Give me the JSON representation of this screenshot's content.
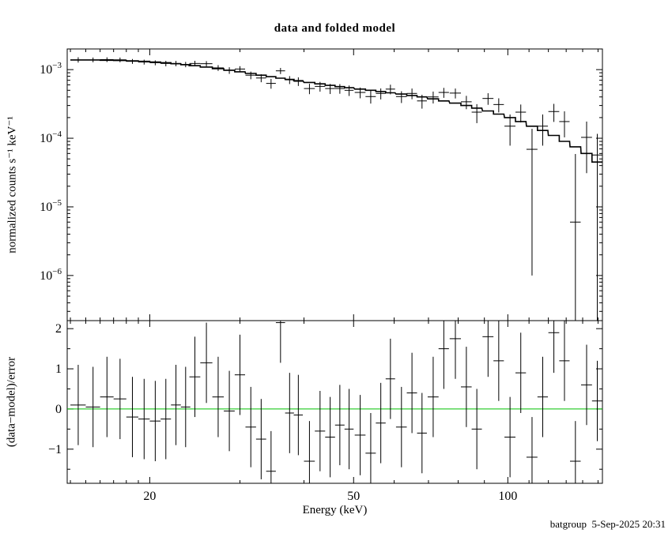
{
  "page": {
    "footer": "batgroup  5-Sep-2025 20:31"
  },
  "chart_data": {
    "type": "scatter",
    "title": "data and folded model",
    "xlabel": "Energy (keV)",
    "xscale": "log",
    "xlim": [
      13.8,
      153
    ],
    "xticks": [
      20,
      50,
      100
    ],
    "xtick_labels": [
      "20",
      "50",
      "100"
    ],
    "xminor_ticks": [
      14,
      15,
      16,
      17,
      18,
      19,
      30,
      40,
      60,
      70,
      80,
      90,
      110,
      120,
      130,
      140,
      150
    ],
    "grid": false,
    "legend": "none",
    "panels": [
      {
        "name": "spectrum",
        "ylabel": "normalized counts s⁻¹ keV⁻¹",
        "yscale": "log",
        "ylim": [
          2.2e-07,
          0.002
        ],
        "ytick_exponents": [
          -3,
          -4,
          -5,
          -6
        ]
      },
      {
        "name": "residuals",
        "ylabel": "(data−model)/error",
        "yscale": "linear",
        "ylim": [
          -1.85,
          2.2
        ],
        "yticks": [
          -1,
          0,
          1,
          2
        ],
        "ytick_labels": [
          "−1",
          "0",
          "1",
          "2"
        ],
        "yminor_ticks": [
          -1.5,
          -0.5,
          0.5,
          1.5
        ],
        "zero_line_color": "#00c000"
      }
    ],
    "colors": {
      "data": "#000000",
      "model": "#000000",
      "zero_line": "#00c000"
    },
    "series": {
      "energy": [
        14.5,
        15.5,
        16.5,
        17.5,
        18.5,
        19.5,
        20.5,
        21.5,
        22.5,
        23.5,
        24.5,
        25.8,
        27.2,
        28.6,
        30.0,
        31.5,
        33.0,
        34.5,
        36.0,
        37.5,
        39.0,
        41.0,
        43.0,
        45.0,
        47.0,
        49.0,
        51.5,
        54.0,
        56.5,
        59.0,
        62.0,
        65.0,
        68.0,
        71.5,
        75.0,
        79.0,
        83.0,
        87.0,
        91.5,
        96.0,
        101.0,
        106.0,
        111.5,
        117.0,
        123.0,
        129.0,
        135.5,
        142.5,
        149.5
      ],
      "energy_halfwidth": [
        0.5,
        0.5,
        0.5,
        0.5,
        0.5,
        0.5,
        0.5,
        0.5,
        0.5,
        0.5,
        0.6,
        0.7,
        0.7,
        0.7,
        0.7,
        0.75,
        0.75,
        0.75,
        0.75,
        0.75,
        0.8,
        1.0,
        1.0,
        1.0,
        1.0,
        1.0,
        1.25,
        1.25,
        1.25,
        1.25,
        1.5,
        1.5,
        1.5,
        1.75,
        1.75,
        2.0,
        2.0,
        2.0,
        2.25,
        2.25,
        2.5,
        2.5,
        2.75,
        2.75,
        3.0,
        3.0,
        3.25,
        3.5,
        3.5
      ],
      "data": [
        0.00139,
        0.00139,
        0.0014,
        0.00139,
        0.00132,
        0.00129,
        0.00126,
        0.00123,
        0.00123,
        0.00119,
        0.00123,
        0.00122,
        0.00106,
        0.000975,
        0.00102,
        0.00083,
        0.000755,
        0.00063,
        0.00096,
        0.00071,
        0.000675,
        0.00053,
        0.00057,
        0.00053,
        0.00053,
        0.0005,
        0.000465,
        0.000405,
        0.00045,
        0.00052,
        0.000405,
        0.00045,
        0.00035,
        0.0004,
        0.000465,
        0.000455,
        0.00034,
        0.00024,
        0.00038,
        0.00031,
        0.00015,
        0.00024,
        6.9e-05,
        0.00015,
        0.000245,
        0.000175,
        6e-06,
        0.000103,
        5.7e-05
      ],
      "data_err": [
        0.000124,
        0.00011,
        0.00011,
        0.000109,
        0.000107,
        0.000106,
        0.000103,
        0.000113,
        0.00011,
        0.000106,
        0.000114,
        0.000109,
        0.000103,
        0.000108,
        0.000102,
        0.000106,
        0.0001,
        0.000103,
        9.8e-05,
        9.4e-05,
        9.7e-05,
        9.1e-05,
        9.3e-05,
        8.9e-05,
        8.5e-05,
        8.7e-05,
        8.3e-05,
        8.5e-05,
        8.2e-05,
        8.3e-05,
        7.9e-05,
        8e-05,
        8e-05,
        7.9e-05,
        7.7e-05,
        7.5e-05,
        7.5e-05,
        7.4e-05,
        7.3e-05,
        7.2e-05,
        7.2e-05,
        7e-05,
        6.8e-05,
        7.2e-05,
        7.2e-05,
        7.2e-05,
        5.3e-05,
        7.2e-05,
        5.9e-05
      ],
      "model": [
        0.00138,
        0.00138,
        0.00137,
        0.00136,
        0.00134,
        0.00132,
        0.00129,
        0.00126,
        0.00122,
        0.00118,
        0.00114,
        0.00109,
        0.00103,
        0.00098,
        0.00093,
        0.00088,
        0.00083,
        0.00079,
        0.00075,
        0.00072,
        0.00069,
        0.00065,
        0.00062,
        0.00059,
        0.000565,
        0.000545,
        0.00052,
        0.0005,
        0.00048,
        0.00046,
        0.00044,
        0.00042,
        0.0004,
        0.000375,
        0.00035,
        0.000325,
        0.0003,
        0.000275,
        0.00025,
        0.000225,
        0.0002,
        0.000175,
        0.00015,
        0.00013,
        0.00011,
        9e-05,
        7.5e-05,
        6e-05,
        4.5e-05
      ],
      "residual": [
        0.1,
        0.05,
        0.3,
        0.25,
        -0.2,
        -0.25,
        -0.3,
        -0.25,
        0.1,
        0.05,
        0.8,
        1.15,
        0.3,
        -0.05,
        0.85,
        -0.45,
        -0.75,
        -1.55,
        2.15,
        -0.1,
        -0.15,
        -1.3,
        -0.55,
        -0.7,
        -0.4,
        -0.5,
        -0.65,
        -1.1,
        -0.35,
        0.75,
        -0.45,
        0.4,
        -0.6,
        0.3,
        1.5,
        1.75,
        0.55,
        -0.5,
        1.8,
        1.2,
        -0.7,
        0.9,
        -1.2,
        0.3,
        1.9,
        1.2,
        -1.3,
        0.6,
        0.2
      ]
    }
  }
}
